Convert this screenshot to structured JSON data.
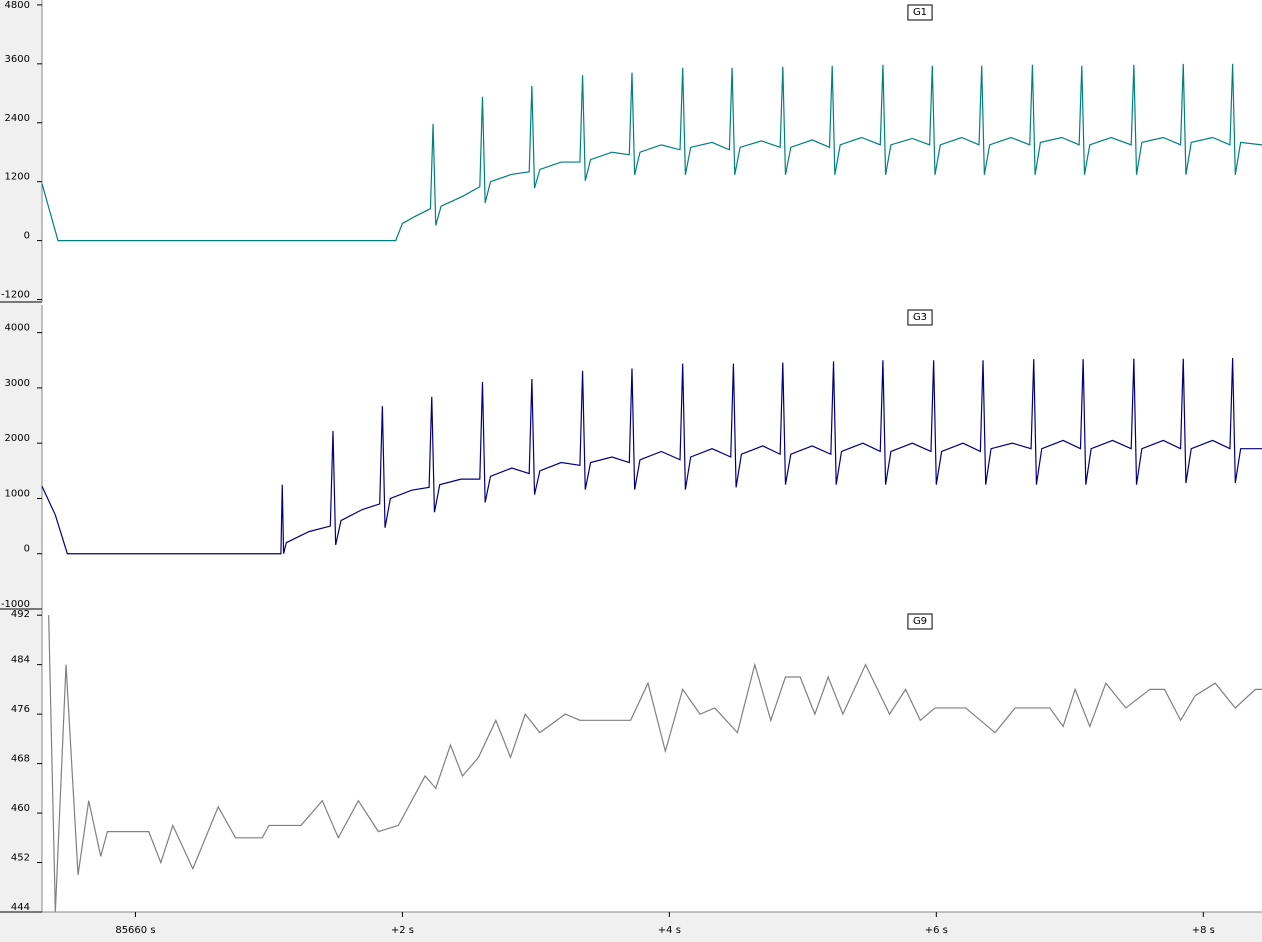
{
  "chart_data": [
    {
      "type": "line",
      "title": "G1",
      "ylim": [
        -1250,
        4900
      ],
      "yticks": [
        4800,
        3600,
        2400,
        1200,
        0,
        -1200
      ],
      "xlim": [
        -0.7,
        8.44
      ],
      "x": [
        -0.7,
        -0.58,
        1.95,
        2.0,
        2.1,
        2.21,
        2.23,
        2.25,
        2.29,
        2.45,
        2.58,
        2.6,
        2.62,
        2.66,
        2.82,
        2.95,
        2.97,
        2.99,
        3.03,
        3.19,
        3.33,
        3.35,
        3.37,
        3.41,
        3.57,
        3.7,
        3.72,
        3.74,
        3.78,
        3.94,
        4.08,
        4.1,
        4.12,
        4.16,
        4.32,
        4.45,
        4.47,
        4.49,
        4.53,
        4.69,
        4.83,
        4.85,
        4.87,
        4.91,
        5.07,
        5.2,
        5.22,
        5.24,
        5.28,
        5.44,
        5.58,
        5.6,
        5.62,
        5.66,
        5.82,
        5.95,
        5.97,
        5.99,
        6.03,
        6.19,
        6.32,
        6.34,
        6.36,
        6.4,
        6.56,
        6.7,
        6.72,
        6.74,
        6.78,
        6.94,
        7.07,
        7.09,
        7.11,
        7.15,
        7.31,
        7.46,
        7.48,
        7.5,
        7.54,
        7.7,
        7.83,
        7.85,
        7.87,
        7.91,
        8.07,
        8.2,
        8.22,
        8.24,
        8.28,
        8.44
      ],
      "series": [
        {
          "color": "#008080",
          "values": [
            1160,
            0,
            0,
            350,
            500,
            650,
            2380,
            310,
            700,
            900,
            1100,
            2930,
            770,
            1200,
            1350,
            1400,
            3150,
            1070,
            1450,
            1600,
            1600,
            3370,
            1220,
            1650,
            1800,
            1750,
            3420,
            1340,
            1800,
            1950,
            1850,
            3520,
            1340,
            1900,
            2000,
            1850,
            3520,
            1340,
            1900,
            2030,
            1900,
            3540,
            1340,
            1900,
            2050,
            1900,
            3560,
            1340,
            1950,
            2100,
            1950,
            3580,
            1340,
            1950,
            2080,
            1950,
            3560,
            1340,
            1950,
            2100,
            1950,
            3560,
            1340,
            1950,
            2100,
            1950,
            3580,
            1340,
            2000,
            2100,
            1950,
            3560,
            1340,
            1950,
            2100,
            1950,
            3580,
            1340,
            2000,
            2100,
            1950,
            3600,
            1340,
            2000,
            2100,
            1950,
            3600,
            1340,
            2000,
            1950
          ]
        }
      ]
    },
    {
      "type": "line",
      "title": "G3",
      "ylim": [
        -1000,
        4500
      ],
      "yticks": [
        4000,
        3000,
        2000,
        1000,
        0,
        -1000
      ],
      "xlim": [
        -0.7,
        8.44
      ],
      "x": [
        -0.7,
        -0.6,
        -0.51,
        1.09,
        1.1,
        1.11,
        1.13,
        1.3,
        1.46,
        1.48,
        1.5,
        1.54,
        1.7,
        1.83,
        1.85,
        1.87,
        1.91,
        2.07,
        2.2,
        2.22,
        2.24,
        2.28,
        2.44,
        2.58,
        2.6,
        2.62,
        2.66,
        2.82,
        2.95,
        2.97,
        2.99,
        3.03,
        3.19,
        3.33,
        3.35,
        3.37,
        3.41,
        3.57,
        3.7,
        3.72,
        3.74,
        3.78,
        3.94,
        4.08,
        4.1,
        4.12,
        4.16,
        4.32,
        4.46,
        4.48,
        4.5,
        4.54,
        4.7,
        4.83,
        4.85,
        4.87,
        4.91,
        5.07,
        5.21,
        5.23,
        5.25,
        5.29,
        5.45,
        5.58,
        5.6,
        5.62,
        5.66,
        5.82,
        5.96,
        5.98,
        6.0,
        6.04,
        6.2,
        6.33,
        6.35,
        6.37,
        6.41,
        6.57,
        6.71,
        6.73,
        6.75,
        6.79,
        6.95,
        7.08,
        7.1,
        7.12,
        7.16,
        7.32,
        7.46,
        7.48,
        7.5,
        7.54,
        7.7,
        7.83,
        7.85,
        7.87,
        7.91,
        8.07,
        8.2,
        8.22,
        8.24,
        8.28,
        8.44
      ],
      "series": [
        {
          "color": "#000080",
          "values": [
            1220,
            700,
            0,
            0,
            1250,
            0,
            200,
            400,
            500,
            2220,
            160,
            600,
            800,
            900,
            2670,
            470,
            1000,
            1150,
            1200,
            2840,
            750,
            1250,
            1350,
            1350,
            3110,
            930,
            1400,
            1550,
            1450,
            3160,
            1070,
            1500,
            1650,
            1600,
            3310,
            1160,
            1650,
            1750,
            1650,
            3350,
            1160,
            1700,
            1850,
            1700,
            3440,
            1160,
            1750,
            1900,
            1750,
            3440,
            1200,
            1800,
            1950,
            1800,
            3460,
            1250,
            1800,
            1950,
            1800,
            3480,
            1250,
            1850,
            2000,
            1850,
            3500,
            1250,
            1850,
            2000,
            1850,
            3500,
            1250,
            1850,
            2000,
            1850,
            3500,
            1250,
            1900,
            2000,
            1900,
            3520,
            1250,
            1900,
            2050,
            1900,
            3520,
            1250,
            1900,
            2050,
            1900,
            3530,
            1250,
            1900,
            2050,
            1900,
            3530,
            1280,
            1900,
            2050,
            1900,
            3540,
            1280,
            1900,
            1900
          ]
        }
      ]
    },
    {
      "type": "line",
      "title": "G9",
      "ylim": [
        444,
        493
      ],
      "yticks": [
        492,
        484,
        476,
        468,
        460,
        452,
        444
      ],
      "xlim": [
        -0.7,
        8.44
      ],
      "xticks": [
        {
          "value": 0,
          "label": "85660 s"
        },
        {
          "value": 2,
          "label": "+2 s"
        },
        {
          "value": 4,
          "label": "+4 s"
        },
        {
          "value": 6,
          "label": "+6 s"
        },
        {
          "value": 8,
          "label": "+8 s"
        }
      ],
      "x": [
        -0.65,
        -0.6,
        -0.52,
        -0.43,
        -0.35,
        -0.26,
        -0.21,
        0.1,
        0.19,
        0.28,
        0.43,
        0.62,
        0.75,
        0.95,
        1.0,
        1.24,
        1.4,
        1.52,
        1.67,
        1.82,
        1.97,
        2.17,
        2.25,
        2.36,
        2.45,
        2.57,
        2.7,
        2.81,
        2.92,
        3.03,
        3.22,
        3.33,
        3.71,
        3.84,
        3.97,
        4.1,
        4.23,
        4.34,
        4.51,
        4.64,
        4.76,
        4.87,
        4.98,
        5.09,
        5.19,
        5.3,
        5.47,
        5.65,
        5.77,
        5.88,
        5.99,
        6.22,
        6.44,
        6.59,
        6.85,
        6.95,
        7.04,
        7.15,
        7.27,
        7.42,
        7.6,
        7.71,
        7.83,
        7.94,
        8.09,
        8.24,
        8.39,
        8.44
      ],
      "series": [
        {
          "color": "#808080",
          "values": [
            492,
            444,
            484,
            450,
            462,
            453,
            457,
            457,
            452,
            458,
            451,
            461,
            456,
            456,
            458,
            458,
            462,
            456,
            462,
            457,
            458,
            466,
            464,
            471,
            466,
            469,
            475,
            469,
            476,
            473,
            476,
            475,
            475,
            481,
            470,
            480,
            476,
            477,
            473,
            484,
            475,
            482,
            482,
            476,
            482,
            476,
            484,
            476,
            480,
            475,
            477,
            477,
            473,
            477,
            477,
            474,
            480,
            474,
            481,
            477,
            480,
            480,
            475,
            479,
            481,
            477,
            480,
            480
          ]
        }
      ]
    }
  ]
}
